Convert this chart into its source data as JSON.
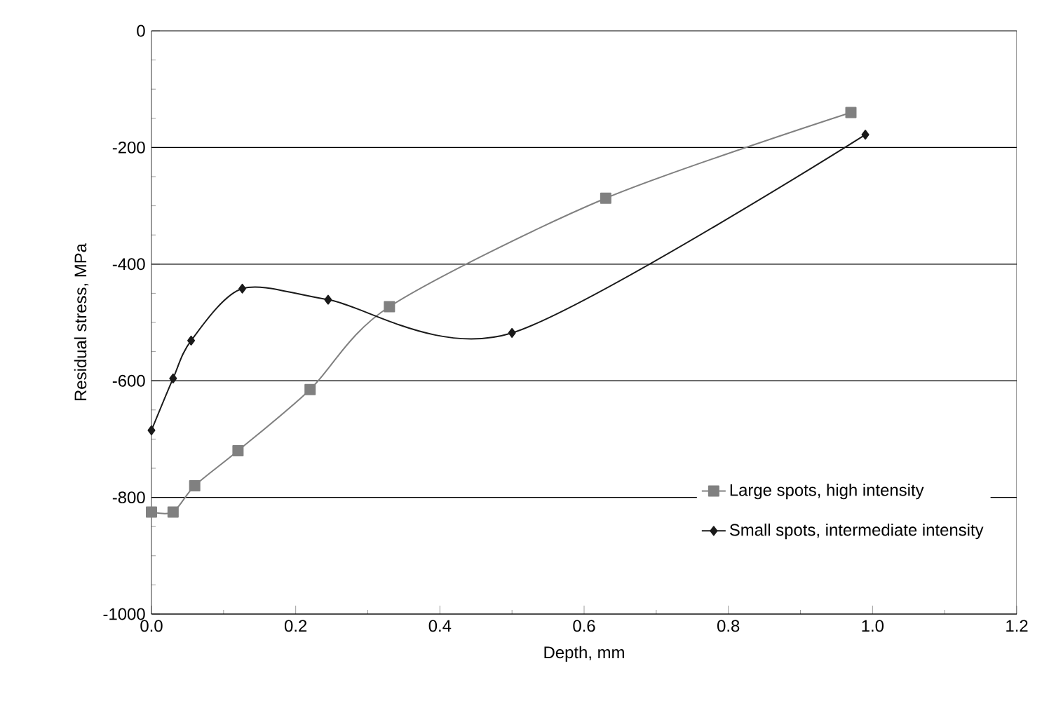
{
  "chart_data": {
    "type": "line",
    "xlabel": "Depth, mm",
    "ylabel": "Residual stress, MPa",
    "xlim": [
      0,
      1.2
    ],
    "ylim": [
      -1000,
      0
    ],
    "xticks": [
      {
        "value": 0,
        "label": "0.0"
      },
      {
        "value": 0.2,
        "label": "0.2"
      },
      {
        "value": 0.4,
        "label": "0.4"
      },
      {
        "value": 0.6,
        "label": "0.6"
      },
      {
        "value": 0.8,
        "label": "0.8"
      },
      {
        "value": 1.0,
        "label": "1.0"
      },
      {
        "value": 1.2,
        "label": "1.2"
      }
    ],
    "yticks": [
      0,
      -200,
      -400,
      -600,
      -800,
      -1000
    ],
    "grid": "y",
    "legend": "bottom right",
    "line_style": "solid",
    "series": [
      {
        "name": "Large spots, high intensity",
        "color": "#808080",
        "marker": "square",
        "x": [
          0.0,
          0.03,
          0.06,
          0.12,
          0.22,
          0.33,
          0.63,
          0.97
        ],
        "values": [
          -825,
          -825,
          -780,
          -720,
          -615,
          -473,
          -287,
          -140
        ]
      },
      {
        "name": "Small spots, intermediate intensity",
        "color": "#1a1a1a",
        "marker": "diamond",
        "x": [
          0.0,
          0.03,
          0.055,
          0.126,
          0.245,
          0.5,
          0.99
        ],
        "values": [
          -685,
          -596,
          -531,
          -442,
          -461,
          -518,
          -178
        ]
      }
    ]
  }
}
